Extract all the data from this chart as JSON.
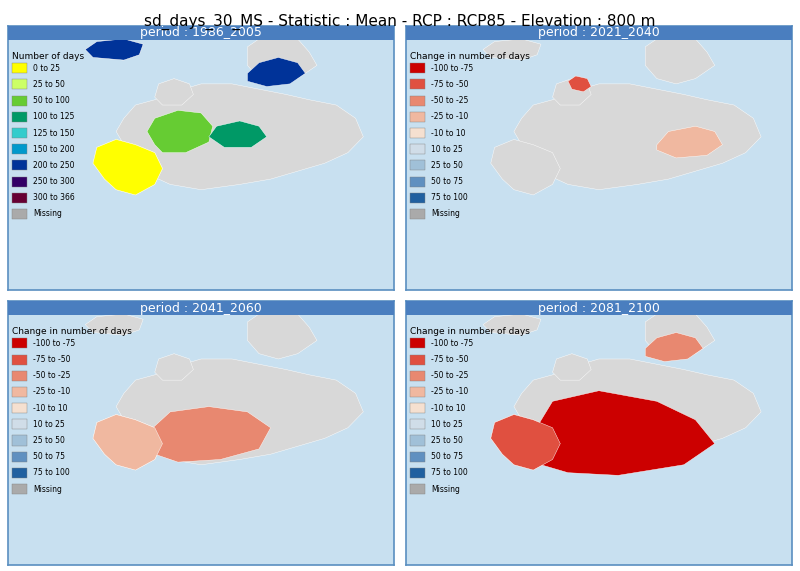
{
  "title": "sd_days_30_MS - Statistic : Mean - RCP : RCP85 - Elevation : 800 m",
  "title_fontsize": 11,
  "panel_titles": [
    "period : 1986_2005",
    "period : 2021_2040",
    "period : 2041_2060",
    "period : 2081_2100"
  ],
  "panel_title_bg": "#4a7ebf",
  "panel_title_color": "white",
  "panel_title_fontsize": 9,
  "bg_color": "#c8e0f0",
  "fig_bg": "white",
  "legend_panel0_title": "Number of days",
  "legend_panel0_labels": [
    "0 to 25",
    "25 to 50",
    "50 to 100",
    "100 to 125",
    "125 to 150",
    "150 to 200",
    "200 to 250",
    "250 to 300",
    "300 to 366",
    "Missing"
  ],
  "legend_panel0_colors": [
    "#ffff00",
    "#ccff66",
    "#66cc33",
    "#009966",
    "#33cccc",
    "#0099cc",
    "#003399",
    "#330066",
    "#660033",
    "#aaaaaa"
  ],
  "legend_change_title": "Change in number of days",
  "legend_change_labels": [
    "-100 to -75",
    "-75 to -50",
    "-50 to -25",
    "-25 to -10",
    "-10 to 10",
    "10 to 25",
    "25 to 50",
    "50 to 75",
    "75 to 100",
    "Missing"
  ],
  "legend_change_colors": [
    "#cc0000",
    "#e05040",
    "#e88870",
    "#f0b8a0",
    "#f5e0d0",
    "#d0dde8",
    "#a0c0d8",
    "#6090c0",
    "#2060a0",
    "#aaaaaa"
  ],
  "outer_border_color": "#5a8fc0",
  "map_bg": "#c8e0f0"
}
